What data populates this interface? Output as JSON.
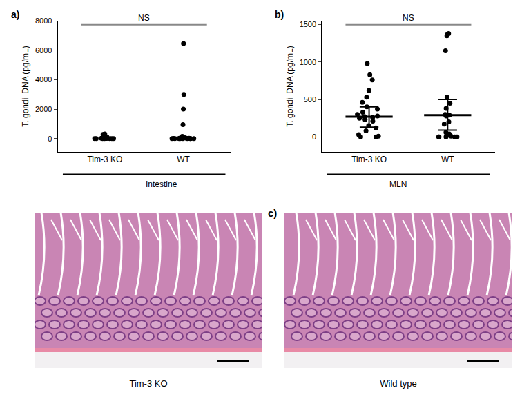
{
  "chart_data": [
    {
      "type": "scatter",
      "title": "a)",
      "ylabel": "T. gondii DNA (pg/mL)",
      "xlabel": "Intestine",
      "categories": [
        "Tim-3 KO",
        "WT"
      ],
      "values": [
        [
          320,
          280,
          250,
          300,
          120,
          80,
          60,
          40,
          30,
          20,
          20,
          10,
          10,
          5,
          0,
          0,
          0,
          0,
          0,
          0
        ],
        [
          6450,
          3000,
          2000,
          950,
          150,
          80,
          60,
          40,
          30,
          20,
          20,
          10,
          10,
          5,
          5,
          0,
          0,
          0,
          0,
          0,
          0,
          0
        ]
      ],
      "color": "#000000",
      "marker": "circle",
      "ylim": [
        -900,
        8000
      ],
      "yticks": [
        0,
        2000,
        4000,
        6000,
        8000
      ],
      "grid": false,
      "annotations": [
        "NS"
      ]
    },
    {
      "type": "scatter",
      "title": "b)",
      "ylabel": "T. gondii DNA (pg/mL)",
      "xlabel": "MLN",
      "categories": [
        "Tim-3 KO",
        "WT"
      ],
      "values": [
        [
          980,
          830,
          760,
          620,
          530,
          460,
          400,
          370,
          330,
          300,
          280,
          270,
          260,
          250,
          230,
          210,
          150,
          120,
          80,
          30,
          10,
          0,
          0
        ],
        [
          1380,
          1370,
          1350,
          1150,
          530,
          450,
          380,
          300,
          290,
          280,
          200,
          170,
          60,
          40,
          20,
          10,
          0,
          0,
          0,
          0,
          0
        ]
      ],
      "median": [
        270,
        290
      ],
      "error_low": [
        130,
        90
      ],
      "error_high": [
        400,
        500
      ],
      "color": "#000000",
      "marker": "circle",
      "ylim": [
        -200,
        1550
      ],
      "yticks": [
        0,
        500,
        1000,
        1500
      ],
      "grid": false,
      "annotations": [
        "NS"
      ]
    }
  ],
  "figure_panel": {
    "label": "c)",
    "captions": [
      "Tim-3 KO",
      "Wild type"
    ]
  }
}
